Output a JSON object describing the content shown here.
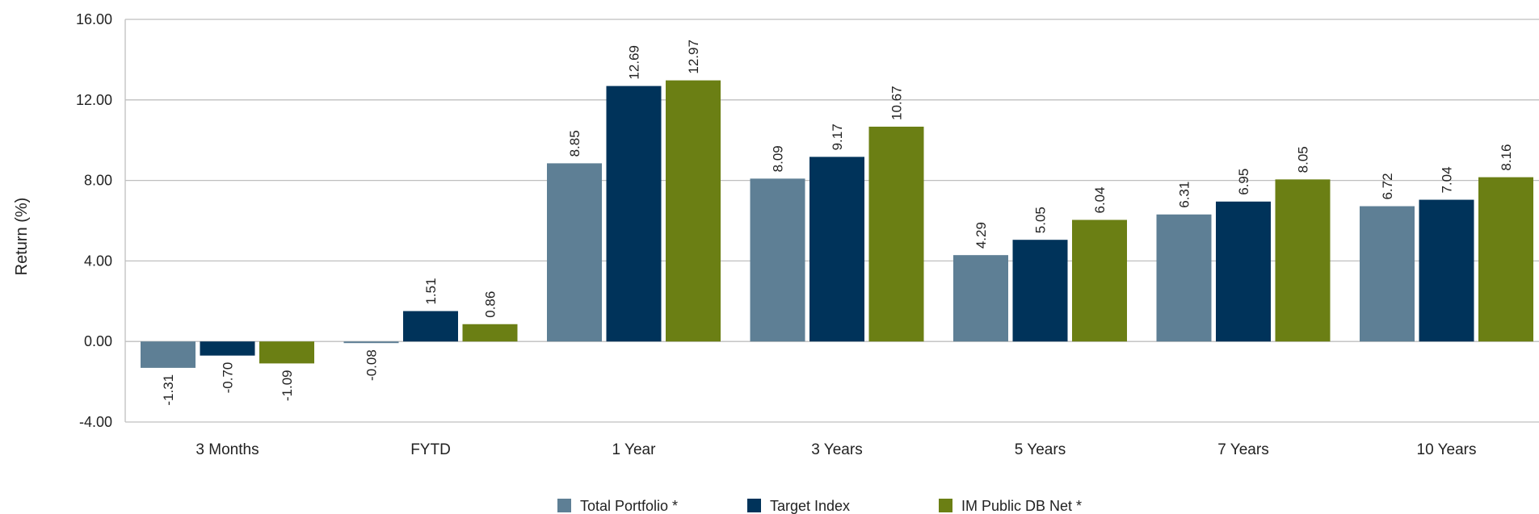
{
  "chart_data": {
    "type": "bar",
    "title": "",
    "xlabel": "",
    "ylabel": "Return (%)",
    "ylim": [
      -4,
      16
    ],
    "yticks": [
      "16.00",
      "12.00",
      "8.00",
      "4.00",
      "0.00",
      "-4.00"
    ],
    "ytick_values": [
      16,
      12,
      8,
      4,
      0,
      -4
    ],
    "grid": true,
    "legend_position": "bottom",
    "categories": [
      "3 Months",
      "FYTD",
      "1 Year",
      "3 Years",
      "5 Years",
      "7 Years",
      "10 Years"
    ],
    "series": [
      {
        "name": "Total Portfolio *",
        "color": "#5e7f95",
        "values": [
          -1.31,
          -0.08,
          8.85,
          8.09,
          4.29,
          6.31,
          6.72
        ],
        "labels": [
          "-1.31",
          "-0.08",
          "8.85",
          "8.09",
          "4.29",
          "6.31",
          "6.72"
        ]
      },
      {
        "name": "Target Index",
        "color": "#00335a",
        "values": [
          -0.7,
          1.51,
          12.69,
          9.17,
          5.05,
          6.95,
          7.04
        ],
        "labels": [
          "-0.70",
          "1.51",
          "12.69",
          "9.17",
          "5.05",
          "6.95",
          "7.04"
        ]
      },
      {
        "name": "IM Public DB Net *",
        "color": "#6b7f14",
        "values": [
          -1.09,
          0.86,
          12.97,
          10.67,
          6.04,
          8.05,
          8.16
        ],
        "labels": [
          "-1.09",
          "0.86",
          "12.97",
          "10.67",
          "6.04",
          "8.05",
          "8.16"
        ]
      }
    ]
  }
}
